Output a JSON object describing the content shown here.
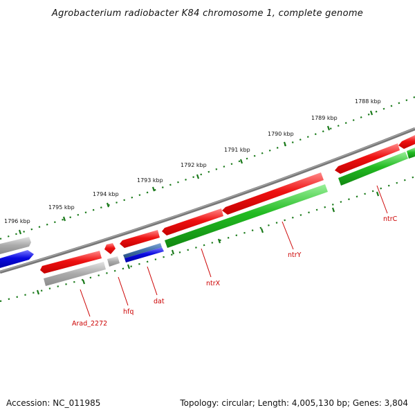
{
  "title": "Agrobacterium radiobacter K84 chromosome 1, complete genome",
  "footer": {
    "accession": "Accession: NC_011985",
    "summary": "Topology: circular; Length: 4,005,130 bp; Genes: 3,804"
  },
  "scale_labels": [
    "1788 kbp",
    "1789 kbp",
    "1790 kbp",
    "1791 kbp",
    "1792 kbp",
    "1793 kbp",
    "1794 kbp",
    "1795 kbp",
    "1796 kbp"
  ],
  "gene_labels": [
    "ntrC",
    "ntrY",
    "ntrX",
    "dat",
    "hfq",
    "Arad_2272"
  ],
  "colors": {
    "backbone": "#777777",
    "forward_gene": "#ee1111",
    "forward_gene_light": "#ff7777",
    "reverse_gene_green": "#22bb22",
    "reverse_gene_green_light": "#88ee88",
    "gray_gene": "#aaaaaa",
    "gray_gene_light": "#dddddd",
    "blue_gene": "#0a0ae0",
    "blue_gene_light": "#6a6aff",
    "steel_gene": "#3f6fa8",
    "ticks": "#1a7a1a",
    "label_line": "#cc0000"
  }
}
